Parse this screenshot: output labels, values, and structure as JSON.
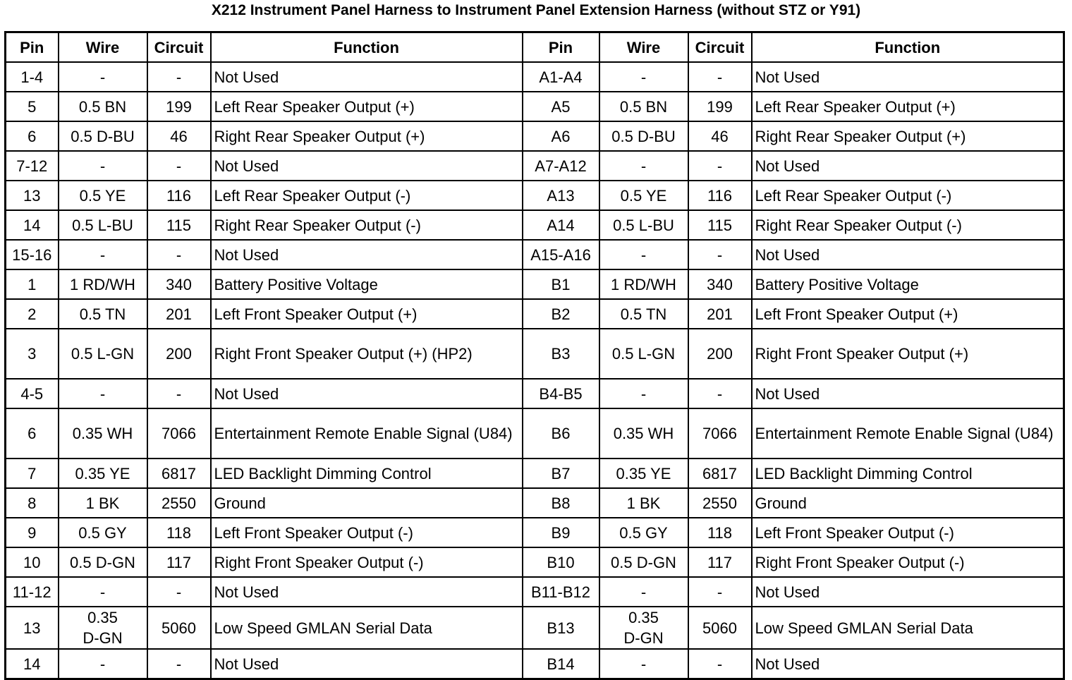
{
  "title": "X212 Instrument Panel Harness to Instrument Panel Extension Harness (without STZ or Y91)",
  "headers": [
    "Pin",
    "Wire",
    "Circuit",
    "Function",
    "Pin",
    "Wire",
    "Circuit",
    "Function"
  ],
  "rows": [
    [
      "1-4",
      "-",
      "-",
      "Not Used",
      "A1-A4",
      "-",
      "-",
      "Not Used"
    ],
    [
      "5",
      "0.5 BN",
      "199",
      "Left Rear Speaker Output (+)",
      "A5",
      "0.5 BN",
      "199",
      "Left Rear Speaker Output (+)"
    ],
    [
      "6",
      "0.5 D-BU",
      "46",
      "Right Rear Speaker Output (+)",
      "A6",
      "0.5 D-BU",
      "46",
      "Right Rear Speaker Output (+)"
    ],
    [
      "7-12",
      "-",
      "-",
      "Not Used",
      "A7-A12",
      "-",
      "-",
      "Not Used"
    ],
    [
      "13",
      "0.5 YE",
      "116",
      "Left Rear Speaker Output (-)",
      "A13",
      "0.5 YE",
      "116",
      "Left Rear Speaker Output (-)"
    ],
    [
      "14",
      "0.5 L-BU",
      "115",
      "Right Rear Speaker Output (-)",
      "A14",
      "0.5 L-BU",
      "115",
      "Right Rear Speaker Output (-)"
    ],
    [
      "15-16",
      "-",
      "-",
      "Not Used",
      "A15-A16",
      "-",
      "-",
      "Not Used"
    ],
    [
      "1",
      "1 RD/WH",
      "340",
      "Battery Positive Voltage",
      "B1",
      "1 RD/WH",
      "340",
      "Battery Positive Voltage"
    ],
    [
      "2",
      "0.5 TN",
      "201",
      "Left Front Speaker Output (+)",
      "B2",
      "0.5 TN",
      "201",
      "Left Front Speaker Output (+)"
    ],
    [
      "3",
      "0.5 L-GN",
      "200",
      "Right Front Speaker Output (+) (HP2)",
      "B3",
      "0.5 L-GN",
      "200",
      "Right Front Speaker Output (+)"
    ],
    [
      "4-5",
      "-",
      "-",
      "Not Used",
      "B4-B5",
      "-",
      "-",
      "Not Used"
    ],
    [
      "6",
      "0.35 WH",
      "7066",
      "Entertainment Remote Enable Signal (U84)",
      "B6",
      "0.35 WH",
      "7066",
      "Entertainment Remote Enable Signal (U84)"
    ],
    [
      "7",
      "0.35 YE",
      "6817",
      "LED Backlight Dimming Control",
      "B7",
      "0.35 YE",
      "6817",
      "LED Backlight Dimming Control"
    ],
    [
      "8",
      "1 BK",
      "2550",
      "Ground",
      "B8",
      "1 BK",
      "2550",
      "Ground"
    ],
    [
      "9",
      "0.5 GY",
      "118",
      "Left Front Speaker Output (-)",
      "B9",
      "0.5 GY",
      "118",
      "Left Front Speaker Output (-)"
    ],
    [
      "10",
      "0.5 D-GN",
      "117",
      "Right Front Speaker Output (-)",
      "B10",
      "0.5 D-GN",
      "117",
      "Right Front Speaker Output (-)"
    ],
    [
      "11-12",
      "-",
      "-",
      "Not Used",
      "B11-B12",
      "-",
      "-",
      "Not Used"
    ],
    [
      "13",
      "0.35 D-GN",
      "5060",
      "Low Speed GMLAN Serial Data",
      "B13",
      "0.35 D-GN",
      "5060",
      "Low Speed GMLAN Serial Data"
    ],
    [
      "14",
      "-",
      "-",
      "Not Used",
      "B14",
      "-",
      "-",
      "Not Used"
    ]
  ]
}
